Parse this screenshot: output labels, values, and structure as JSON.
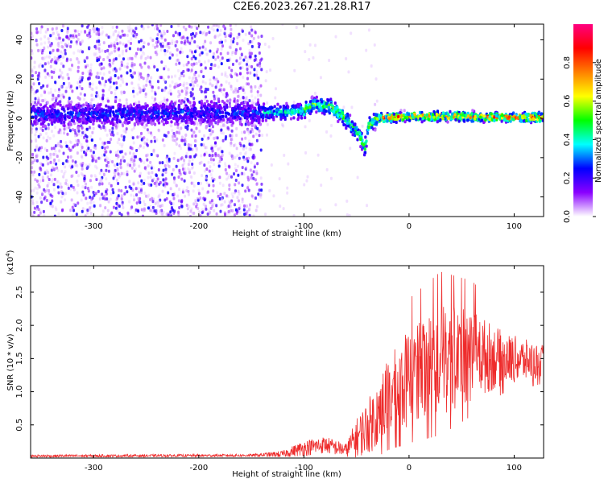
{
  "title": "C2E6.2023.267.21.28.R17",
  "chart_data": [
    {
      "type": "heatmap",
      "description_axis": "spectrogram",
      "xlabel": "Height of straight line (km)",
      "ylabel": "Frequency (Hz)",
      "xlim": [
        -360,
        128
      ],
      "ylim": [
        -50,
        48
      ],
      "xticks": [
        -300,
        -200,
        -100,
        0,
        100
      ],
      "yticks": [
        40,
        20,
        0,
        -20,
        -40
      ],
      "xtick_labels": [
        "-300",
        "-200",
        "-100",
        "0",
        "100"
      ],
      "ytick_labels": [
        "40",
        "20",
        "0",
        "-20",
        "-40"
      ],
      "colorbar": {
        "label": "Normalized spectral amplitude",
        "range": [
          0.0,
          1.0
        ],
        "ticks": [
          0.0,
          0.2,
          0.4,
          0.6,
          0.8
        ],
        "tick_labels": [
          "0.0",
          "0.2",
          "0.4",
          "0.6",
          "0.8"
        ],
        "colors": [
          "#ffffff",
          "#8a00ff",
          "#0000ff",
          "#00ffff",
          "#00ff00",
          "#ffff00",
          "#ff8000",
          "#ff0000",
          "#ff0080"
        ]
      },
      "signal_track": [
        {
          "x": -360,
          "f": 2
        },
        {
          "x": -300,
          "f": 2
        },
        {
          "x": -200,
          "f": 3
        },
        {
          "x": -150,
          "f": 3
        },
        {
          "x": -120,
          "f": 3
        },
        {
          "x": -100,
          "f": 4
        },
        {
          "x": -90,
          "f": 7
        },
        {
          "x": -75,
          "f": 6
        },
        {
          "x": -65,
          "f": 2
        },
        {
          "x": -55,
          "f": -3
        },
        {
          "x": -48,
          "f": -8
        },
        {
          "x": -42,
          "f": -15
        },
        {
          "x": -38,
          "f": -3
        },
        {
          "x": -30,
          "f": 0
        },
        {
          "x": 0,
          "f": 1
        },
        {
          "x": 50,
          "f": 1
        },
        {
          "x": 100,
          "f": 0.5
        },
        {
          "x": 128,
          "f": 0.5
        }
      ]
    },
    {
      "type": "line",
      "xlabel": "Height of straight line (km)",
      "ylabel": "SNR (10 * v/v)",
      "yscale_label": "(x10",
      "yscale_exp": "4",
      "yscale_close": ")",
      "xlim": [
        -360,
        128
      ],
      "ylim": [
        0,
        2.9
      ],
      "xticks": [
        -300,
        -200,
        -100,
        0,
        100
      ],
      "yticks": [
        0.5,
        1.0,
        1.5,
        2.0,
        2.5
      ],
      "xtick_labels": [
        "-300",
        "-200",
        "-100",
        "0",
        "100"
      ],
      "ytick_labels": [
        "0.5",
        "1.0",
        "1.5",
        "2.0",
        "2.5"
      ],
      "color": "#ee2b2b",
      "envelope": [
        {
          "x": -360,
          "mean": 0.03,
          "amp": 0.02
        },
        {
          "x": -150,
          "mean": 0.04,
          "amp": 0.02
        },
        {
          "x": -120,
          "mean": 0.06,
          "amp": 0.05
        },
        {
          "x": -100,
          "mean": 0.15,
          "amp": 0.12
        },
        {
          "x": -80,
          "mean": 0.2,
          "amp": 0.13
        },
        {
          "x": -60,
          "mean": 0.12,
          "amp": 0.1
        },
        {
          "x": -50,
          "mean": 0.3,
          "amp": 0.3
        },
        {
          "x": -35,
          "mean": 0.55,
          "amp": 0.45
        },
        {
          "x": -20,
          "mean": 0.9,
          "amp": 0.6
        },
        {
          "x": 0,
          "mean": 1.2,
          "amp": 0.75
        },
        {
          "x": 30,
          "mean": 1.45,
          "amp": 0.85
        },
        {
          "x": 60,
          "mean": 1.55,
          "amp": 0.7
        },
        {
          "x": 90,
          "mean": 1.5,
          "amp": 0.4
        },
        {
          "x": 128,
          "mean": 1.45,
          "amp": 0.25
        }
      ]
    }
  ]
}
